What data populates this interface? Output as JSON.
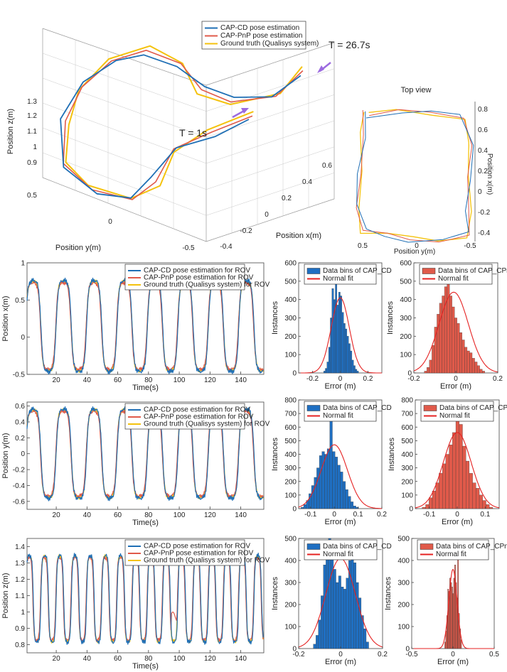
{
  "colors": {
    "capcd": "#1f6fb5",
    "cappnp": "#e05a4a",
    "gt": "#f4c20d",
    "hist_cd": "#1f6fc2",
    "hist_pnp": "#e05a4a",
    "fit": "#e52222",
    "arrow": "#9c6be0"
  },
  "chart_data": [
    {
      "id": "traj3d",
      "type": "line",
      "title": "",
      "xlabel": "Position x(m)",
      "ylabel": "Position y(m)",
      "zlabel": "Position z(m)",
      "x_ticks": [
        "-0.4",
        "-0.2",
        "0",
        "0.2",
        "0.4",
        "0.6"
      ],
      "y_ticks": [
        "0.5",
        "0",
        "-0.5"
      ],
      "z_ticks": [
        "0.9",
        "1",
        "1.1",
        "1.2",
        "1.3"
      ],
      "legend": [
        "CAP-CD pose estimation",
        "CAP-PnP pose estimation",
        "Ground truth (Qualisys system)"
      ],
      "annotations": [
        "T = 26.7s",
        "T = 1s"
      ]
    },
    {
      "id": "topview",
      "type": "line",
      "title": "Top view",
      "xlabel": "Position y(m)",
      "ylabel": "Position x(m)",
      "x_ticks": [
        "0.5",
        "0",
        "-0.5"
      ],
      "y_ticks": [
        "0.8",
        "0.6",
        "0.4",
        "0.2",
        "0",
        "-0.2",
        "-0.4"
      ]
    },
    {
      "id": "ts_x",
      "type": "line",
      "xlabel": "Time(s)",
      "ylabel": "Position x(m)",
      "xlim": [
        1,
        155
      ],
      "ylim": [
        -0.5,
        1
      ],
      "x_ticks": [
        20,
        40,
        60,
        80,
        100,
        120,
        140
      ],
      "y_ticks": [
        "-0.5",
        "0",
        "0.5",
        "1"
      ],
      "period": 19.8,
      "amplitude": 0.6,
      "offset": 0.15,
      "legend": [
        "CAP-CD pose estimation for ROV",
        "CAP-PnP pose estimation for ROV",
        "Ground truth (Qualisys system) for ROV"
      ]
    },
    {
      "id": "ts_y",
      "type": "line",
      "xlabel": "Time(s)",
      "ylabel": "Position y(m)",
      "xlim": [
        1,
        155
      ],
      "ylim": [
        -0.7,
        0.65
      ],
      "x_ticks": [
        20,
        40,
        60,
        80,
        100,
        120,
        140
      ],
      "y_ticks": [
        "-0.6",
        "-0.4",
        "-0.2",
        "0",
        "0.2",
        "0.4",
        "0.6"
      ],
      "period": 19.8,
      "amplitude": 0.55,
      "offset": 0.0,
      "legend": [
        "CAP-CD pose estimation for ROV",
        "CAP-PnP pose estimation for ROV",
        "Ground truth (Qualisys system) for ROV"
      ]
    },
    {
      "id": "ts_z",
      "type": "line",
      "xlabel": "Time(s)",
      "ylabel": "Position z(m)",
      "xlim": [
        1,
        155
      ],
      "ylim": [
        0.75,
        1.45
      ],
      "x_ticks": [
        20,
        40,
        60,
        80,
        100,
        120,
        140
      ],
      "y_ticks": [
        "0.8",
        "0.9",
        "1",
        "1.1",
        "1.2",
        "1.3",
        "1.4"
      ],
      "period": 9.9,
      "amplitude": 0.26,
      "offset": 1.08,
      "legend": [
        "CAP-CD pose estimation for ROV",
        "CAP-PnP pose estimation for ROV",
        "Ground truth (Qualisys system) for ROV"
      ]
    },
    {
      "id": "hist_x_cd",
      "type": "bar",
      "xlabel": "Error (m)",
      "ylabel": "Instances",
      "xlim": [
        -0.3,
        0.3
      ],
      "ylim": [
        0,
        600
      ],
      "x_ticks": [
        "-0.2",
        "0",
        "0.2"
      ],
      "y_ticks": [
        "0",
        "100",
        "200",
        "300",
        "400",
        "500",
        "600"
      ],
      "legend": [
        "Data bins of CAP_CD",
        "Normal fit"
      ],
      "bin_start": -0.12,
      "bin_width": 0.012,
      "values": [
        10,
        25,
        60,
        140,
        300,
        460,
        400,
        520,
        370,
        440,
        420,
        330,
        270,
        240,
        200,
        160,
        120,
        70,
        40,
        20,
        10
      ],
      "fit_mu": 0.0,
      "fit_sigma": 0.065,
      "fit_peak": 410
    },
    {
      "id": "hist_x_pnp",
      "type": "bar",
      "xlabel": "Error (m)",
      "ylabel": "Instances",
      "xlim": [
        -0.2,
        0.2
      ],
      "ylim": [
        0,
        600
      ],
      "x_ticks": [
        "-0.2",
        "0",
        "0.2"
      ],
      "y_ticks": [
        "0",
        "100",
        "200",
        "300",
        "400",
        "500",
        "600"
      ],
      "legend": [
        "Data bins of CAP_CPnP",
        "Normal fit"
      ],
      "bin_start": -0.15,
      "bin_width": 0.012,
      "values": [
        10,
        30,
        70,
        150,
        250,
        320,
        380,
        420,
        470,
        500,
        420,
        360,
        300,
        270,
        220,
        180,
        140,
        120,
        110,
        80,
        60,
        40,
        20,
        10
      ],
      "fit_mu": -0.01,
      "fit_sigma": 0.07,
      "fit_peak": 440
    },
    {
      "id": "hist_y_cd",
      "type": "bar",
      "xlabel": "Error (m)",
      "ylabel": "Instances",
      "xlim": [
        -0.15,
        0.2
      ],
      "ylim": [
        0,
        800
      ],
      "x_ticks": [
        "-0.1",
        "0",
        "0.1",
        "0.2"
      ],
      "y_ticks": [
        "0",
        "100",
        "200",
        "300",
        "400",
        "500",
        "600",
        "700",
        "800"
      ],
      "legend": [
        "Data bins of CAP_CD",
        "Normal fit"
      ],
      "bin_start": -0.14,
      "bin_width": 0.011,
      "values": [
        10,
        30,
        60,
        110,
        170,
        230,
        300,
        390,
        420,
        400,
        440,
        690,
        420,
        380,
        320,
        270,
        200,
        140,
        90,
        50,
        20,
        10
      ],
      "fit_mu": 0.0,
      "fit_sigma": 0.055,
      "fit_peak": 470
    },
    {
      "id": "hist_y_pnp",
      "type": "bar",
      "xlabel": "Error (m)",
      "ylabel": "Instances",
      "xlim": [
        -0.15,
        0.15
      ],
      "ylim": [
        0,
        800
      ],
      "x_ticks": [
        "-0.1",
        "0",
        "0.1"
      ],
      "y_ticks": [
        "0",
        "100",
        "200",
        "300",
        "400",
        "500",
        "600",
        "700",
        "800"
      ],
      "legend": [
        "Data bins of CAP_CPnP",
        "Normal fit"
      ],
      "bin_start": -0.125,
      "bin_width": 0.012,
      "values": [
        10,
        30,
        80,
        130,
        190,
        260,
        330,
        400,
        470,
        560,
        680,
        620,
        460,
        350,
        260,
        190,
        150,
        100,
        60,
        30,
        10
      ],
      "fit_mu": 0.0,
      "fit_sigma": 0.05,
      "fit_peak": 560
    },
    {
      "id": "hist_z_cd",
      "type": "bar",
      "xlabel": "Error (m)",
      "ylabel": "Instances",
      "xlim": [
        -0.2,
        0.2
      ],
      "ylim": [
        0,
        500
      ],
      "x_ticks": [
        "-0.2",
        "0",
        "0.2"
      ],
      "y_ticks": [
        "0",
        "100",
        "200",
        "300",
        "400",
        "500"
      ],
      "legend": [
        "Data bins of CAP_CD",
        "Normal fit"
      ],
      "bin_start": -0.13,
      "bin_width": 0.012,
      "values": [
        20,
        60,
        130,
        240,
        380,
        460,
        500,
        440,
        360,
        300,
        330,
        280,
        270,
        320,
        400,
        480,
        390,
        300,
        230,
        150,
        90,
        30
      ],
      "fit_mu": 0.0,
      "fit_sigma": 0.07,
      "fit_peak": 410
    },
    {
      "id": "hist_z_pnp",
      "type": "bar",
      "xlabel": "Error (m)",
      "ylabel": "Instances",
      "xlim": [
        -0.5,
        0.5
      ],
      "ylim": [
        0,
        500
      ],
      "x_ticks": [
        "-0.5",
        "0",
        "0.5"
      ],
      "y_ticks": [
        "0",
        "100",
        "200",
        "300",
        "400",
        "500"
      ],
      "legend": [
        "Data bins of CAP_CPnP",
        "Normal fit"
      ],
      "bin_start": -0.1,
      "bin_width": 0.012,
      "values": [
        30,
        80,
        150,
        270,
        260,
        320,
        300,
        280,
        250,
        320,
        380,
        300,
        230,
        420,
        160,
        90,
        40
      ],
      "fit_mu": 0.0,
      "fit_sigma": 0.05,
      "fit_peak": 360
    }
  ]
}
